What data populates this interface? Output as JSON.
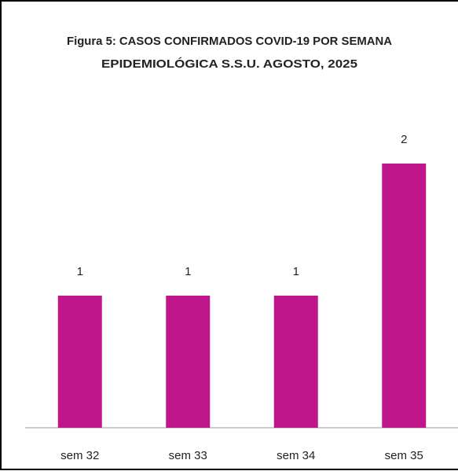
{
  "chart_data": {
    "type": "bar",
    "title": [
      "Figura 5: CASOS CONFIRMADOS COVID-19 POR SEMANA",
      "EPIDEMIOLÓGICA S.S.U. AGOSTO, 2025"
    ],
    "categories": [
      "sem 32",
      "sem 33",
      "sem 34",
      "sem 35"
    ],
    "values": [
      1,
      1,
      1,
      2
    ],
    "color": "#c0168c",
    "ylim": [
      0,
      2.5
    ]
  }
}
